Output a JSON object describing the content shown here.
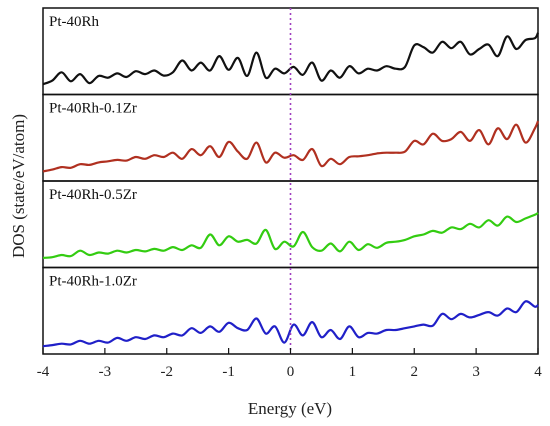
{
  "chart_data": {
    "type": "line",
    "title": "",
    "xlabel": "Energy (eV)",
    "ylabel": "DOS (state/eV/atom)",
    "xlim": [
      -4,
      4
    ],
    "xticks": [
      "-4",
      "-3",
      "-2",
      "-1",
      "0",
      "1",
      "2",
      "3",
      "4"
    ],
    "fermi_level": 0,
    "fermi_color": "#a040c0",
    "grid": false,
    "panels": [
      {
        "name": "Pt-40Rh",
        "color": "#111111",
        "x": [
          -4.0,
          -3.85,
          -3.7,
          -3.55,
          -3.4,
          -3.25,
          -3.1,
          -2.95,
          -2.8,
          -2.65,
          -2.5,
          -2.35,
          -2.2,
          -2.05,
          -1.9,
          -1.75,
          -1.6,
          -1.45,
          -1.3,
          -1.15,
          -1.0,
          -0.85,
          -0.7,
          -0.55,
          -0.4,
          -0.25,
          -0.1,
          0.05,
          0.2,
          0.35,
          0.5,
          0.65,
          0.8,
          0.95,
          1.1,
          1.25,
          1.4,
          1.55,
          1.7,
          1.85,
          2.0,
          2.15,
          2.3,
          2.45,
          2.6,
          2.75,
          2.9,
          3.05,
          3.2,
          3.35,
          3.5,
          3.65,
          3.8,
          3.95,
          4.0
        ],
        "y": [
          0.12,
          0.22,
          0.45,
          0.2,
          0.4,
          0.15,
          0.35,
          0.3,
          0.42,
          0.32,
          0.48,
          0.4,
          0.5,
          0.36,
          0.45,
          0.78,
          0.5,
          0.72,
          0.5,
          0.9,
          0.52,
          0.85,
          0.35,
          1.0,
          0.3,
          0.55,
          0.42,
          0.6,
          0.38,
          0.72,
          0.22,
          0.5,
          0.3,
          0.62,
          0.42,
          0.55,
          0.5,
          0.62,
          0.55,
          0.6,
          1.2,
          1.15,
          1.0,
          1.3,
          1.12,
          1.3,
          0.95,
          1.1,
          1.22,
          0.9,
          1.45,
          1.1,
          1.35,
          1.4,
          1.55
        ]
      },
      {
        "name": "Pt-40Rh-0.1Zr",
        "color": "#b03020",
        "x": [
          -4.0,
          -3.85,
          -3.7,
          -3.55,
          -3.4,
          -3.25,
          -3.1,
          -2.95,
          -2.8,
          -2.65,
          -2.5,
          -2.35,
          -2.2,
          -2.05,
          -1.9,
          -1.75,
          -1.6,
          -1.45,
          -1.3,
          -1.15,
          -1.0,
          -0.85,
          -0.7,
          -0.55,
          -0.4,
          -0.25,
          -0.1,
          0.05,
          0.2,
          0.35,
          0.5,
          0.65,
          0.8,
          0.95,
          1.1,
          1.25,
          1.4,
          1.55,
          1.7,
          1.85,
          2.0,
          2.15,
          2.3,
          2.45,
          2.6,
          2.75,
          2.9,
          3.05,
          3.2,
          3.35,
          3.5,
          3.65,
          3.8,
          3.95,
          4.0
        ],
        "y": [
          0.1,
          0.15,
          0.22,
          0.2,
          0.3,
          0.28,
          0.35,
          0.38,
          0.42,
          0.4,
          0.5,
          0.45,
          0.55,
          0.5,
          0.62,
          0.45,
          0.72,
          0.55,
          0.8,
          0.5,
          0.92,
          0.65,
          0.45,
          0.9,
          0.35,
          0.62,
          0.48,
          0.55,
          0.42,
          0.72,
          0.25,
          0.45,
          0.3,
          0.5,
          0.52,
          0.55,
          0.6,
          0.62,
          0.62,
          0.65,
          0.95,
          0.85,
          1.15,
          0.95,
          1.0,
          1.2,
          0.95,
          1.25,
          0.85,
          1.3,
          1.0,
          1.4,
          0.9,
          1.3,
          1.5
        ]
      },
      {
        "name": "Pt-40Rh-0.5Zr",
        "color": "#33cc11",
        "x": [
          -4.0,
          -3.85,
          -3.7,
          -3.55,
          -3.4,
          -3.25,
          -3.1,
          -2.95,
          -2.8,
          -2.65,
          -2.5,
          -2.35,
          -2.2,
          -2.05,
          -1.9,
          -1.75,
          -1.6,
          -1.45,
          -1.3,
          -1.15,
          -1.0,
          -0.85,
          -0.7,
          -0.55,
          -0.4,
          -0.25,
          -0.1,
          0.05,
          0.2,
          0.35,
          0.5,
          0.65,
          0.8,
          0.95,
          1.1,
          1.25,
          1.4,
          1.55,
          1.7,
          1.85,
          2.0,
          2.15,
          2.3,
          2.45,
          2.6,
          2.75,
          2.9,
          3.05,
          3.2,
          3.35,
          3.5,
          3.65,
          3.8,
          3.95,
          4.0
        ],
        "y": [
          0.1,
          0.12,
          0.18,
          0.15,
          0.3,
          0.18,
          0.25,
          0.22,
          0.3,
          0.25,
          0.32,
          0.28,
          0.35,
          0.3,
          0.4,
          0.32,
          0.45,
          0.38,
          0.75,
          0.45,
          0.7,
          0.55,
          0.6,
          0.5,
          0.88,
          0.35,
          0.55,
          0.42,
          0.82,
          0.4,
          0.3,
          0.5,
          0.28,
          0.55,
          0.32,
          0.48,
          0.38,
          0.52,
          0.55,
          0.6,
          0.7,
          0.75,
          0.85,
          0.8,
          0.95,
          0.9,
          1.05,
          0.95,
          1.15,
          1.0,
          1.25,
          1.1,
          1.2,
          1.3,
          1.35
        ]
      },
      {
        "name": "Pt-40Rh-1.0Zr",
        "color": "#2020c8",
        "x": [
          -4.0,
          -3.85,
          -3.7,
          -3.55,
          -3.4,
          -3.25,
          -3.1,
          -2.95,
          -2.8,
          -2.65,
          -2.5,
          -2.35,
          -2.2,
          -2.05,
          -1.9,
          -1.75,
          -1.6,
          -1.45,
          -1.3,
          -1.15,
          -1.0,
          -0.85,
          -0.7,
          -0.55,
          -0.4,
          -0.25,
          -0.1,
          0.05,
          0.2,
          0.35,
          0.5,
          0.65,
          0.8,
          0.95,
          1.1,
          1.25,
          1.4,
          1.55,
          1.7,
          1.85,
          2.0,
          2.15,
          2.3,
          2.45,
          2.6,
          2.75,
          2.9,
          3.05,
          3.2,
          3.35,
          3.5,
          3.65,
          3.8,
          3.95,
          4.0
        ],
        "y": [
          0.05,
          0.08,
          0.12,
          0.1,
          0.2,
          0.12,
          0.2,
          0.15,
          0.28,
          0.2,
          0.3,
          0.25,
          0.35,
          0.3,
          0.4,
          0.35,
          0.55,
          0.42,
          0.6,
          0.45,
          0.7,
          0.55,
          0.5,
          0.82,
          0.4,
          0.6,
          0.15,
          0.65,
          0.35,
          0.72,
          0.3,
          0.5,
          0.25,
          0.6,
          0.3,
          0.42,
          0.4,
          0.5,
          0.5,
          0.55,
          0.6,
          0.65,
          0.62,
          0.95,
          0.8,
          0.95,
          0.85,
          0.92,
          1.0,
          0.9,
          1.1,
          1.0,
          1.3,
          1.15,
          1.2
        ]
      }
    ]
  }
}
